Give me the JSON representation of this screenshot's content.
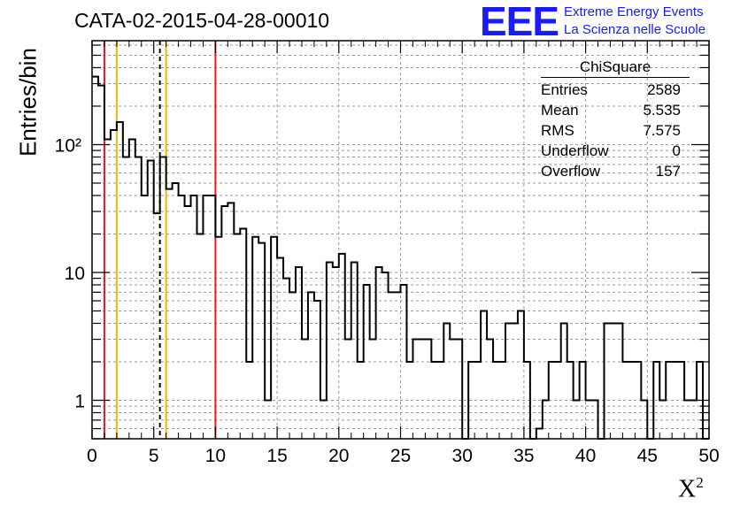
{
  "title": "CATA-02-2015-04-28-00010",
  "logo": {
    "mark": "EEE",
    "line1": "Extreme Energy Events",
    "line2": "La Scienza nelle Scuole",
    "color": "#1a1aff"
  },
  "stats": {
    "title": "ChiSquare",
    "rows": [
      {
        "label": "Entries",
        "value": "2589"
      },
      {
        "label": "Mean",
        "value": "5.535"
      },
      {
        "label": "RMS",
        "value": "7.575"
      },
      {
        "label": "Underflow",
        "value": "0"
      },
      {
        "label": "Overflow",
        "value": "157"
      }
    ]
  },
  "chart_data": {
    "type": "bar",
    "histogram": true,
    "xlabel": "X²",
    "ylabel": "Entries/bin",
    "xlim": [
      0,
      50
    ],
    "ylim": [
      0.5,
      650
    ],
    "log_y": true,
    "grid": true,
    "bin_width": 0.5,
    "x_tick_labels": [
      "0",
      "5",
      "10",
      "15",
      "20",
      "25",
      "30",
      "35",
      "40",
      "45",
      "50"
    ],
    "y_tick_labels": [
      "1",
      "10",
      "10²"
    ],
    "values": [
      340,
      290,
      110,
      130,
      150,
      80,
      110,
      80,
      40,
      75,
      29,
      80,
      45,
      50,
      40,
      33,
      40,
      20,
      40,
      40,
      19,
      33,
      35,
      20,
      22,
      2,
      19,
      17,
      1,
      19,
      13,
      9,
      7,
      11,
      3,
      7,
      6,
      1,
      12,
      11,
      14,
      3,
      12,
      2,
      8,
      3,
      11,
      10,
      7,
      7,
      8,
      2,
      3,
      3,
      3,
      2,
      2,
      4,
      3,
      3,
      0.3,
      2,
      2,
      5,
      3,
      2,
      2,
      4,
      4,
      5,
      2,
      0.3,
      0.6,
      1,
      2,
      2,
      4,
      2,
      1,
      2,
      1,
      1,
      0.3,
      4,
      4,
      4,
      2,
      2,
      2,
      1,
      0.3,
      2,
      1,
      2,
      2,
      2,
      1,
      1,
      2,
      0.2
    ],
    "vertical_lines": [
      {
        "x": 1.0,
        "color": "#e41a1c",
        "style": "solid"
      },
      {
        "x": 2.0,
        "color": "#f5b800",
        "style": "solid"
      },
      {
        "x": 5.5,
        "color": "#000000",
        "style": "dashed"
      },
      {
        "x": 6.0,
        "color": "#f5b800",
        "style": "solid"
      },
      {
        "x": 10.0,
        "color": "#e41a1c",
        "style": "solid"
      }
    ]
  }
}
